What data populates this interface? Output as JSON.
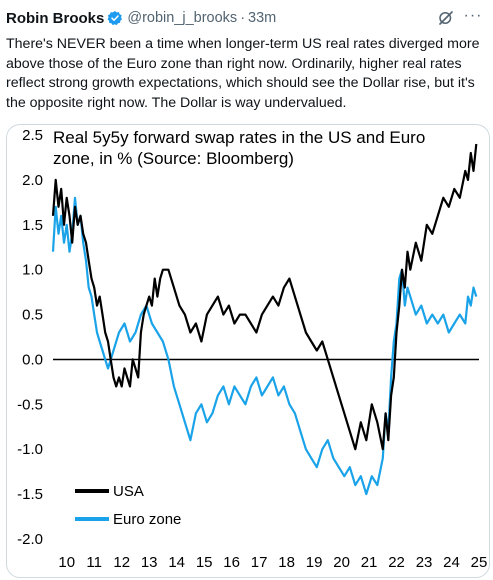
{
  "tweet": {
    "author_name": "Robin Brooks",
    "handle": "@robin_j_brooks",
    "separator": "·",
    "time": "33m",
    "text": "There's NEVER been a time when longer-term US real rates diverged more above those of the Euro zone than right now. Ordinarily, higher real rates reflect strong growth expectations, which should see the Dollar rise, but it's the opposite right now. The Dollar is way undervalued.",
    "more_glyph": "···"
  },
  "colors": {
    "us": "#000000",
    "euro": "#1aa3e8",
    "verified": "#1d9bf0",
    "zero_line": "#000000"
  },
  "chart_data": {
    "type": "line",
    "title_lines": [
      "Real 5y5y forward swap rates in the US and Euro",
      "zone, in % (Source: Bloomberg)"
    ],
    "xlabel": "",
    "ylabel": "",
    "xlim": [
      10,
      25.5
    ],
    "ylim": [
      -2.0,
      2.5
    ],
    "x_ticks": [
      "10",
      "11",
      "12",
      "13",
      "14",
      "15",
      "16",
      "17",
      "18",
      "19",
      "20",
      "21",
      "22",
      "23",
      "24",
      "25"
    ],
    "y_ticks": [
      "2.5",
      "2.0",
      "1.5",
      "1.0",
      "0.5",
      "0.0",
      "-0.5",
      "-1.0",
      "-1.5",
      "-2.0"
    ],
    "grid": false,
    "legend_position": "bottom-left",
    "series": [
      {
        "name": "USA",
        "x": [
          10.0,
          10.1,
          10.2,
          10.3,
          10.4,
          10.5,
          10.6,
          10.7,
          10.8,
          10.9,
          11.0,
          11.1,
          11.2,
          11.3,
          11.4,
          11.5,
          11.6,
          11.7,
          11.8,
          11.9,
          12.0,
          12.1,
          12.2,
          12.3,
          12.4,
          12.5,
          12.6,
          12.7,
          12.8,
          12.9,
          13.0,
          13.1,
          13.2,
          13.3,
          13.4,
          13.5,
          13.6,
          13.7,
          13.8,
          13.9,
          14.0,
          14.2,
          14.4,
          14.6,
          14.8,
          15.0,
          15.2,
          15.4,
          15.6,
          15.8,
          16.0,
          16.2,
          16.4,
          16.6,
          16.8,
          17.0,
          17.2,
          17.4,
          17.6,
          17.8,
          18.0,
          18.2,
          18.4,
          18.6,
          18.8,
          19.0,
          19.2,
          19.4,
          19.6,
          19.8,
          20.0,
          20.2,
          20.4,
          20.6,
          20.8,
          21.0,
          21.2,
          21.4,
          21.6,
          21.8,
          22.0,
          22.1,
          22.2,
          22.3,
          22.4,
          22.5,
          22.6,
          22.7,
          22.8,
          22.9,
          23.0,
          23.2,
          23.4,
          23.6,
          23.8,
          24.0,
          24.2,
          24.4,
          24.6,
          24.8,
          25.0,
          25.1,
          25.2,
          25.3,
          25.4
        ],
        "values": [
          1.6,
          2.0,
          1.7,
          1.9,
          1.5,
          1.8,
          1.6,
          1.3,
          1.7,
          1.5,
          1.6,
          1.4,
          1.3,
          1.1,
          0.9,
          0.8,
          0.6,
          0.7,
          0.5,
          0.3,
          0.2,
          0.0,
          -0.2,
          -0.3,
          -0.2,
          -0.3,
          -0.1,
          -0.2,
          -0.3,
          0.0,
          -0.1,
          -0.2,
          0.3,
          0.5,
          0.6,
          0.7,
          0.6,
          0.9,
          0.7,
          0.9,
          1.0,
          1.0,
          0.8,
          0.6,
          0.5,
          0.3,
          0.4,
          0.2,
          0.5,
          0.6,
          0.7,
          0.5,
          0.6,
          0.4,
          0.5,
          0.5,
          0.4,
          0.3,
          0.5,
          0.6,
          0.7,
          0.6,
          0.8,
          0.9,
          0.7,
          0.5,
          0.3,
          0.2,
          0.1,
          0.2,
          0.0,
          -0.2,
          -0.4,
          -0.6,
          -0.8,
          -1.0,
          -0.7,
          -0.9,
          -0.5,
          -0.7,
          -1.0,
          -0.6,
          -0.9,
          -0.4,
          -0.2,
          0.3,
          0.6,
          1.0,
          0.8,
          1.2,
          1.0,
          1.3,
          1.1,
          1.5,
          1.4,
          1.6,
          1.8,
          1.7,
          1.9,
          1.8,
          2.1,
          2.0,
          2.3,
          2.1,
          2.4
        ]
      },
      {
        "name": "Euro zone",
        "x": [
          10.0,
          10.1,
          10.2,
          10.3,
          10.4,
          10.5,
          10.6,
          10.7,
          10.8,
          10.9,
          11.0,
          11.1,
          11.2,
          11.3,
          11.4,
          11.5,
          11.6,
          11.7,
          11.8,
          11.9,
          12.0,
          12.2,
          12.4,
          12.6,
          12.8,
          13.0,
          13.2,
          13.4,
          13.6,
          13.8,
          14.0,
          14.2,
          14.4,
          14.6,
          14.8,
          15.0,
          15.2,
          15.4,
          15.6,
          15.8,
          16.0,
          16.2,
          16.4,
          16.6,
          16.8,
          17.0,
          17.2,
          17.4,
          17.6,
          17.8,
          18.0,
          18.2,
          18.4,
          18.6,
          18.8,
          19.0,
          19.2,
          19.4,
          19.6,
          19.8,
          20.0,
          20.2,
          20.4,
          20.6,
          20.8,
          21.0,
          21.2,
          21.4,
          21.6,
          21.8,
          22.0,
          22.1,
          22.2,
          22.3,
          22.4,
          22.5,
          22.6,
          22.7,
          22.8,
          22.9,
          23.0,
          23.2,
          23.4,
          23.6,
          23.8,
          24.0,
          24.2,
          24.4,
          24.6,
          24.8,
          25.0,
          25.1,
          25.2,
          25.3,
          25.4
        ],
        "values": [
          1.2,
          1.7,
          1.4,
          1.6,
          1.3,
          1.5,
          1.2,
          1.4,
          1.8,
          1.5,
          1.6,
          1.3,
          1.1,
          0.8,
          0.7,
          0.5,
          0.3,
          0.2,
          0.1,
          0.0,
          -0.1,
          0.1,
          0.3,
          0.4,
          0.2,
          0.3,
          0.5,
          0.6,
          0.4,
          0.3,
          0.2,
          0.0,
          -0.3,
          -0.5,
          -0.7,
          -0.9,
          -0.6,
          -0.5,
          -0.7,
          -0.6,
          -0.4,
          -0.3,
          -0.5,
          -0.3,
          -0.4,
          -0.5,
          -0.3,
          -0.2,
          -0.4,
          -0.3,
          -0.2,
          -0.4,
          -0.3,
          -0.5,
          -0.6,
          -0.8,
          -1.0,
          -1.1,
          -1.2,
          -1.0,
          -0.9,
          -1.1,
          -1.2,
          -1.3,
          -1.2,
          -1.4,
          -1.3,
          -1.5,
          -1.3,
          -1.4,
          -1.1,
          -0.6,
          -0.8,
          -0.2,
          0.2,
          0.4,
          0.9,
          1.0,
          0.6,
          0.8,
          0.7,
          0.5,
          0.6,
          0.4,
          0.5,
          0.4,
          0.5,
          0.3,
          0.4,
          0.5,
          0.4,
          0.7,
          0.6,
          0.8,
          0.7
        ]
      }
    ]
  }
}
